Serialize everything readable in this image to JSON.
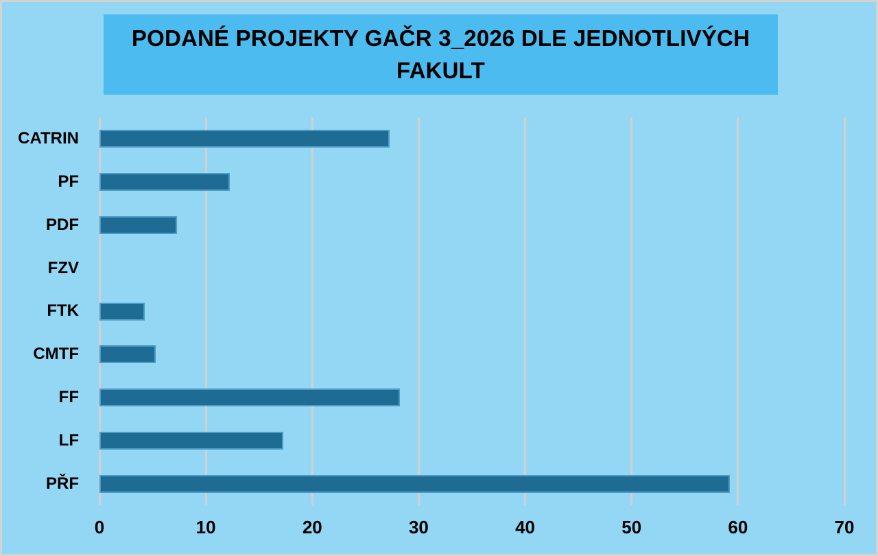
{
  "frame": {
    "background": "#94d7f4",
    "border_color": "#d3d3d3"
  },
  "title": {
    "text": "PODANÉ PROJEKTY GAČR 3_2026 DLE JEDNOTLIVÝCH FAKULT",
    "box_color": "#4bbbf0",
    "text_color": "#000000"
  },
  "chart_data": {
    "type": "bar",
    "orientation": "horizontal",
    "title": "PODANÉ PROJEKTY GAČR 3_2026 DLE JEDNOTLIVÝCH FAKULT",
    "categories": [
      "CATRIN",
      "PF",
      "PDF",
      "FZV",
      "FTK",
      "CMTF",
      "FF",
      "LF",
      "PŘF"
    ],
    "values": [
      27,
      12,
      7,
      0,
      4,
      5,
      28,
      17,
      59
    ],
    "xlabel": "",
    "ylabel": "",
    "xlim": [
      0,
      70
    ],
    "xticks": [
      0,
      10,
      20,
      30,
      40,
      50,
      60,
      70
    ],
    "grid": true,
    "legend": false,
    "bar_color": "#1e6b94",
    "bar_border_color": "#4d9bc2",
    "gridline_color": "#d2d0ce"
  }
}
